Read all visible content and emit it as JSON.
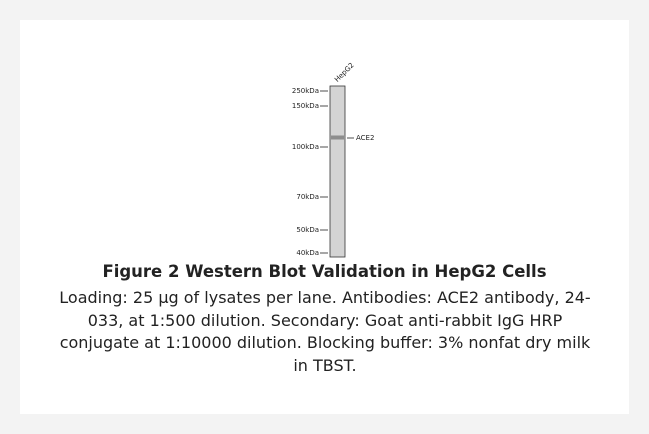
{
  "figure": {
    "lane_label": "HepG2",
    "markers": [
      "250kDa",
      "150kDa",
      "100kDa",
      "70kDa",
      "50kDa",
      "40kDa"
    ],
    "band_label": "ACE2",
    "caption_title": "Figure 2 Western Blot Validation in HepG2 Cells",
    "caption_text": "Loading: 25 µg of lysates per lane. Antibodies: ACE2 antibody, 24-033, at 1:500 dilution. Secondary: Goat anti-rabbit IgG HRP conjugate at 1:10000 dilution. Blocking buffer: 3% nonfat dry milk in TBST."
  }
}
